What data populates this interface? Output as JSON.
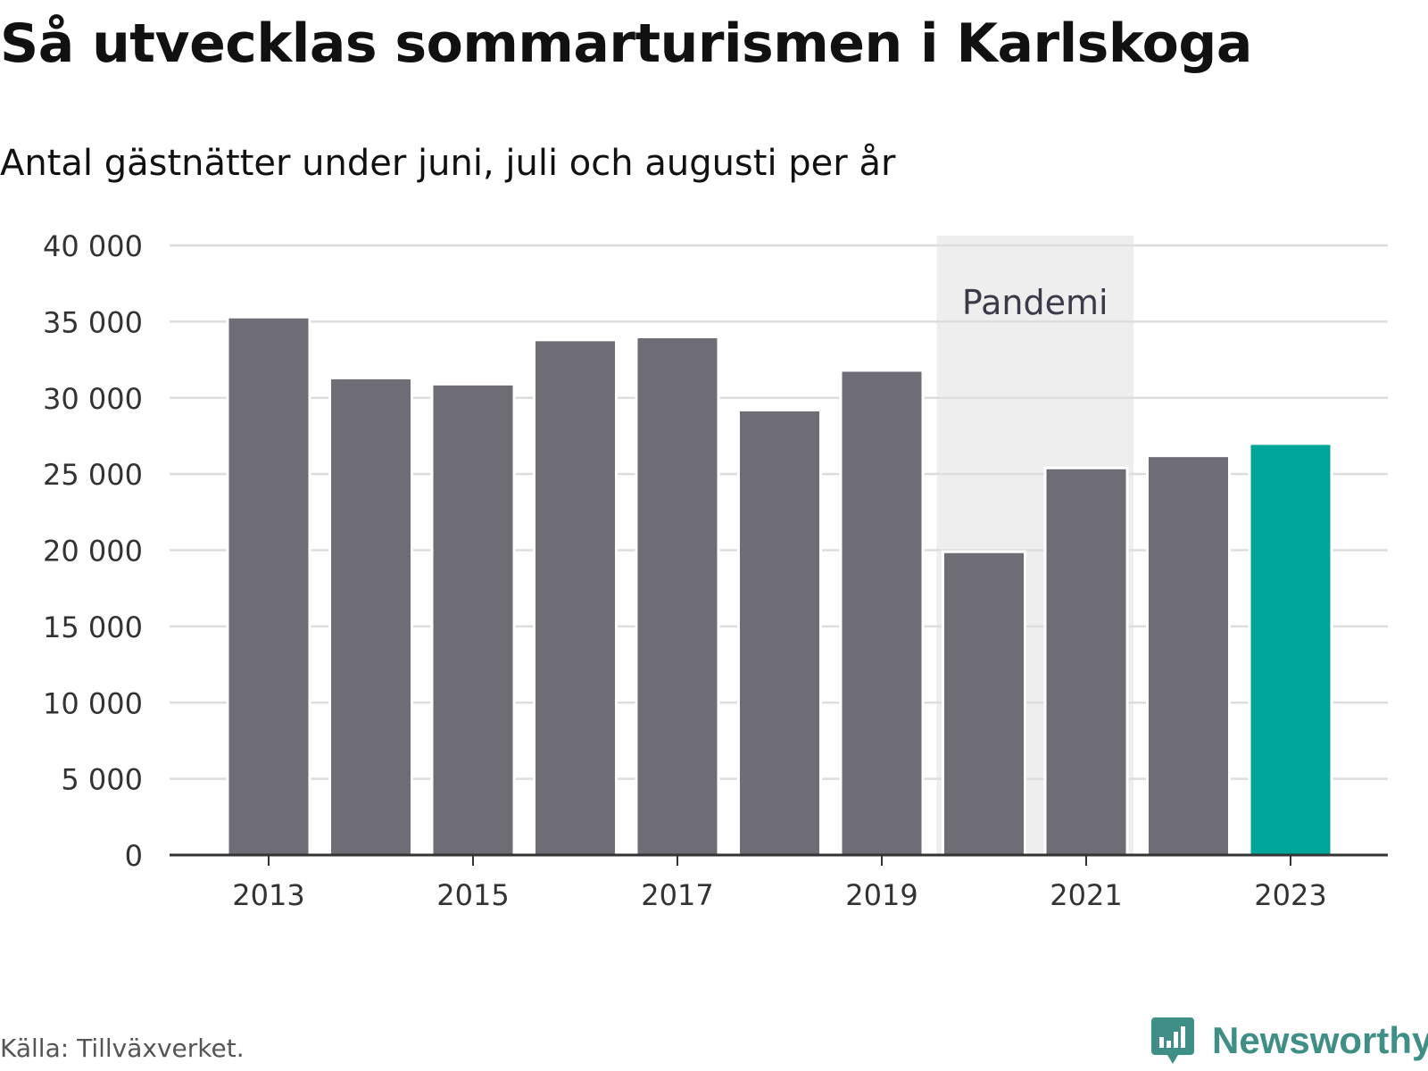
{
  "chart_data": {
    "type": "bar",
    "title": "Så utvecklas sommarturismen i Karlskoga",
    "subtitle": "Antal gästnätter under juni, juli och augusti per år",
    "categories": [
      "2013",
      "2014",
      "2015",
      "2016",
      "2017",
      "2018",
      "2019",
      "2020",
      "2021",
      "2022",
      "2023"
    ],
    "values": [
      35300,
      31300,
      30900,
      33800,
      34000,
      29200,
      31800,
      19900,
      25400,
      26200,
      27000
    ],
    "x_tick_labels": [
      "2013",
      "2015",
      "2017",
      "2019",
      "2021",
      "2023"
    ],
    "y_ticks": [
      0,
      5000,
      10000,
      15000,
      20000,
      25000,
      30000,
      35000,
      40000
    ],
    "y_tick_labels": [
      "0",
      "5 000",
      "10 000",
      "15 000",
      "20 000",
      "25 000",
      "30 000",
      "35 000",
      "40 000"
    ],
    "ylim": [
      0,
      40000
    ],
    "xlabel": "",
    "ylabel": "",
    "grid": true,
    "annotation": {
      "label": "Pandemi",
      "from": "2020",
      "to": "2021"
    },
    "colors": {
      "bar": "#6e6d75",
      "highlight": "#00a59a",
      "highlight_category": "2023",
      "shade": "#eeeeee",
      "grid": "#dddddd",
      "axis": "#333333"
    }
  },
  "footer": {
    "source": "Källa: Tillväxverket.",
    "brand": "Newsworthy",
    "brand_icon": "newsworthy-logo-icon"
  }
}
